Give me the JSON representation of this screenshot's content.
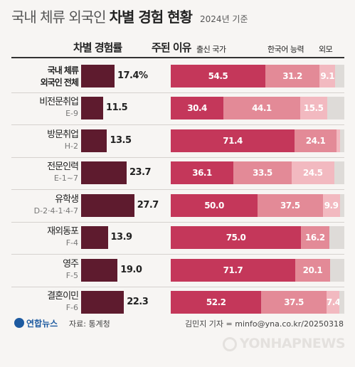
{
  "title": {
    "light": "국내 체류 외국인",
    "bold": "차별 경험 현황",
    "year": "2024년 기준"
  },
  "headers": {
    "rate": "차별 경험률",
    "reason": "주된 이유"
  },
  "colors": {
    "rate_bar": "#5e1b2e",
    "origin": "#c4375a",
    "korean": "#e38a97",
    "appearance": "#f2b9c0",
    "other": "#dedbd8"
  },
  "chart_data": {
    "type": "bar",
    "legend": [
      "출신 국가",
      "한국어 능력",
      "외모"
    ],
    "rows": [
      {
        "label": "국내 체류",
        "label2": "외국인 전체",
        "code": "",
        "rate": 17.4,
        "rate_text": "17.4%",
        "origin": 54.5,
        "korean": 31.2,
        "appearance": 9.1
      },
      {
        "label": "비전문취업",
        "code": "E-9",
        "rate": 11.5,
        "rate_text": "11.5",
        "origin": 30.4,
        "korean": 44.1,
        "appearance": 15.5
      },
      {
        "label": "방문취업",
        "code": "H-2",
        "rate": 13.5,
        "rate_text": "13.5",
        "origin": 71.4,
        "korean": 24.1,
        "appearance": 2.0
      },
      {
        "label": "전문인력",
        "code": "E-1~7",
        "rate": 23.7,
        "rate_text": "23.7",
        "origin": 36.1,
        "korean": 33.5,
        "appearance": 24.5
      },
      {
        "label": "유학생",
        "code": "D-2·4-1·4-7",
        "rate": 27.7,
        "rate_text": "27.7",
        "origin": 50.0,
        "korean": 37.5,
        "appearance": 9.9
      },
      {
        "label": "재외동포",
        "code": "F-4",
        "rate": 13.9,
        "rate_text": "13.9",
        "origin": 75.0,
        "korean": 16.2,
        "appearance": 0
      },
      {
        "label": "영주",
        "code": "F-5",
        "rate": 19.0,
        "rate_text": "19.0",
        "origin": 71.7,
        "korean": 20.1,
        "appearance": 0
      },
      {
        "label": "결혼이민",
        "code": "F-6",
        "rate": 22.3,
        "rate_text": "22.3",
        "origin": 52.2,
        "korean": 37.5,
        "appearance": 7.4
      }
    ]
  },
  "footer": {
    "logo": "연합뉴스",
    "source": "자료: 통계청",
    "credit": "김민지 기자 = minfo@yna.co.kr/20250318"
  },
  "watermark": "YONHAPNEWS"
}
